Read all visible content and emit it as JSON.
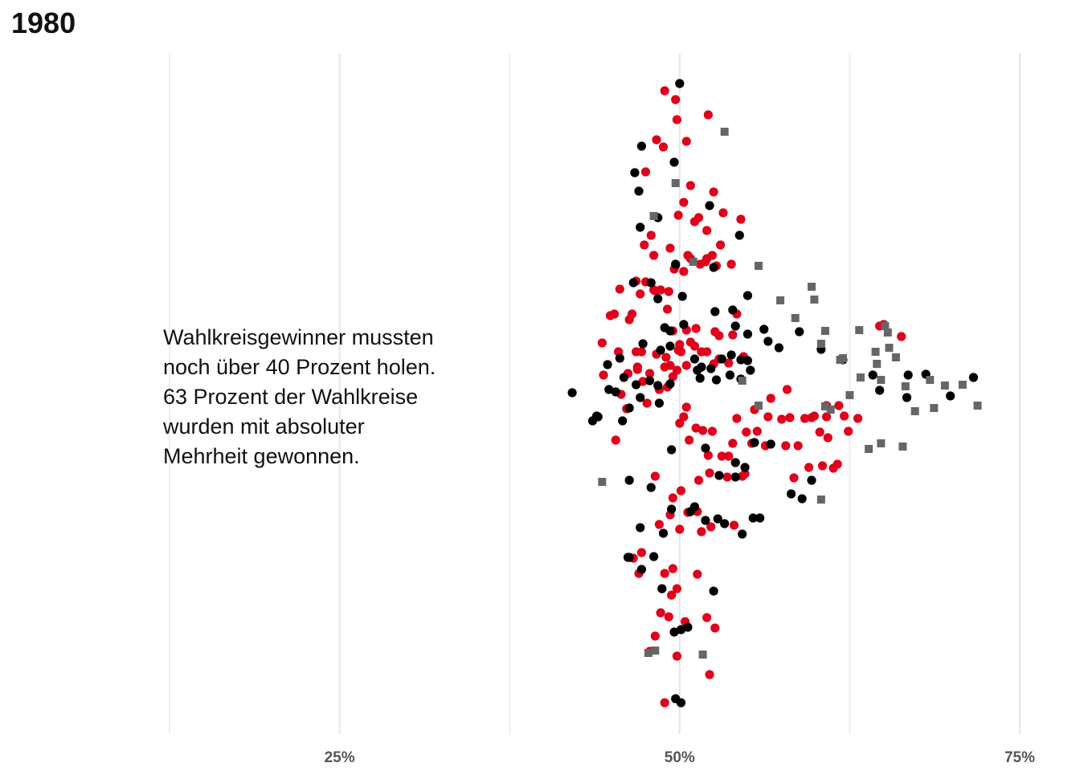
{
  "chart_data": {
    "type": "scatter",
    "subtype": "beeswarm",
    "title": "1980",
    "annotation": [
      "Wahlkreisgewinner mussten",
      "noch über 40 Prozent holen.",
      "63 Prozent der Wahlkreise",
      "wurden mit absoluter",
      "Mehrheit gewonnen."
    ],
    "x_axis": {
      "unit": "%",
      "xlim": [
        12.5,
        75
      ],
      "major_ticks": [
        25,
        50,
        75
      ],
      "tick_labels": [
        "25%",
        "50%",
        "75%"
      ],
      "minor_gridlines": [
        12.5,
        37.5,
        62.5
      ]
    },
    "grid": true,
    "colors": {
      "red": "#e0001b",
      "black": "#000000",
      "gray": "#666666"
    },
    "series": [
      {
        "color_key": "red",
        "shape": "circle",
        "x": [
          48.9,
          49.7,
          49.8,
          52.1,
          48.3,
          50.5,
          48.8,
          47.5,
          50.8,
          52.5,
          50.3,
          51.4,
          49.9,
          53.2,
          54.5,
          51.1,
          52.0,
          47.9,
          47.4,
          49.3,
          48.1,
          51.9,
          53.8,
          52.7,
          50.6,
          49.6,
          46.8,
          45.6,
          44.9,
          45.2,
          44.3,
          45.5,
          44.4,
          46.2,
          47.2,
          46.8,
          46.9,
          45.7,
          47.3,
          47.6,
          48.5,
          48.9,
          49.3,
          49.1,
          49.5,
          49.9,
          50.1,
          50.5,
          50.3,
          50.0,
          50.7,
          51.2,
          52.4,
          51.7,
          53.1,
          52.1,
          53.6,
          54.2,
          53.9,
          54.8,
          55.3,
          54.6,
          55.7,
          54.9,
          56.3,
          57.8,
          58.7,
          58.4,
          59.5,
          60.5,
          61.3,
          61.6,
          60.9,
          60.3,
          59.7,
          60.8,
          62.1,
          62.4,
          63.1,
          64.7,
          65.0,
          66.3,
          57.9,
          56.7,
          55.5,
          57.5,
          58.1,
          59.2,
          59.9,
          60.8,
          61.7,
          56.5,
          54.7,
          53.6,
          52.9,
          52.5,
          52.0,
          51.6,
          51.2,
          50.8,
          50.5,
          50.0,
          49.5,
          49.1,
          48.6,
          48.1,
          47.5,
          46.5,
          46.3,
          47.1,
          48.2,
          49.2,
          49.7,
          50.3,
          50.8,
          51.5,
          52.0,
          52.4,
          53.0,
          54.2,
          53.9,
          52.9,
          52.6,
          51.1,
          50.5,
          49.8,
          49.0,
          48.3,
          47.8,
          46.9,
          46.1,
          45.3,
          48.2,
          49.5,
          50.1,
          51.4,
          52.2,
          53.5,
          54.0,
          52.3,
          51.6,
          51.3,
          50.6,
          50.0,
          49.3,
          48.5,
          47.2,
          46.6,
          47.0,
          48.9,
          49.5,
          51.3,
          49.8,
          49.4,
          48.6,
          52.0,
          52.6,
          50.4,
          49.2,
          48.2,
          47.8,
          49.8,
          52.2,
          48.9
        ],
        "y": [
          113,
          124,
          149,
          143,
          174,
          176,
          183,
          214,
          231,
          239,
          252,
          271,
          268,
          265,
          273,
          276,
          287,
          293,
          305,
          309,
          318,
          326,
          329,
          331,
          318,
          335,
          350,
          360,
          393,
          391,
          427,
          438,
          467,
          465,
          438,
          438,
          457,
          491,
          475,
          502,
          485,
          457,
          455,
          482,
          469,
          436,
          438,
          507,
          519,
          527,
          548,
          533,
          537,
          536,
          568,
          567,
          568,
          521,
          552,
          590,
          552,
          593,
          537,
          538,
          555,
          555,
          555,
          595,
          582,
          580,
          583,
          578,
          545,
          538,
          520,
          519,
          518,
          537,
          521,
          406,
          404,
          419,
          485,
          496,
          510,
          522,
          520,
          521,
          518,
          505,
          505,
          519,
          444,
          452,
          447,
          453,
          438,
          438,
          409,
          426,
          411,
          429,
          412,
          385,
          361,
          361,
          351,
          391,
          398,
          366,
          362,
          363,
          331,
          338,
          322,
          329,
          322,
          318,
          305,
          391,
          417,
          418,
          413,
          431,
          455,
          461,
          445,
          441,
          465,
          460,
          509,
          548,
          593,
          620,
          611,
          598,
          589,
          594,
          654,
          656,
          662,
          637,
          638,
          659,
          641,
          653,
          688,
          695,
          714,
          714,
          708,
          715,
          733,
          741,
          763,
          769,
          782,
          774,
          768,
          792,
          811,
          817,
          840,
          875
        ]
      },
      {
        "color_key": "black",
        "shape": "circle",
        "x": [
          50.0,
          47.2,
          52.2,
          49.6,
          46.7,
          47.0,
          55.0,
          52.5,
          48.4,
          47.1,
          54.4,
          49.7,
          46.6,
          48.4,
          49.3,
          50.2,
          47.9,
          52.6,
          53.9,
          54.1,
          55.0,
          56.2,
          58.8,
          56.5,
          57.3,
          60.4,
          55.0,
          53.8,
          54.5,
          53.1,
          51.6,
          52.3,
          51.3,
          49.3,
          48.4,
          46.8,
          45.3,
          44.8,
          43.9,
          42.1,
          43.6,
          44.0,
          45.8,
          44.7,
          45.6,
          47.3,
          48.6,
          49.3,
          48.9,
          50.3,
          51.1,
          51.5,
          52.7,
          53.7,
          54.5,
          55.2,
          55.5,
          54.1,
          52.9,
          51.9,
          50.8,
          49.4,
          48.8,
          47.1,
          46.3,
          46.2,
          47.2,
          48.1,
          48.7,
          52.5,
          50.1,
          50.6,
          49.6,
          54.8,
          54.1,
          59.0,
          58.2,
          62.0,
          64.2,
          66.8,
          68.1,
          71.6,
          69.9,
          64.7,
          66.7,
          49.7,
          50.1,
          49.4,
          48.5,
          47.1,
          46.3,
          45.9,
          47.8,
          46.3,
          47.9,
          56.7,
          59.7,
          51.1,
          51.9,
          52.8,
          53.3,
          54.6,
          55.4,
          55.9
        ],
        "y": [
          104,
          182,
          256,
          202,
          215,
          238,
          368,
          333,
          271,
          283,
          293,
          329,
          352,
          372,
          412,
          369,
          352,
          388,
          386,
          406,
          416,
          410,
          413,
          425,
          433,
          435,
          449,
          442,
          448,
          447,
          457,
          459,
          461,
          478,
          480,
          479,
          488,
          485,
          518,
          489,
          524,
          519,
          524,
          454,
          446,
          428,
          436,
          431,
          408,
          404,
          447,
          471,
          473,
          467,
          472,
          461,
          551,
          594,
          592,
          558,
          637,
          634,
          664,
          657,
          694,
          694,
          709,
          693,
          733,
          736,
          784,
          781,
          787,
          582,
          576,
          621,
          615,
          448,
          467,
          467,
          466,
          470,
          493,
          486,
          495,
          870,
          875,
          560,
          502,
          495,
          508,
          470,
          474,
          598,
          607,
          553,
          598,
          631,
          648,
          646,
          652,
          665,
          645,
          645
        ]
      },
      {
        "color_key": "gray",
        "shape": "square",
        "x": [
          53.3,
          49.7,
          48.1,
          51.0,
          55.8,
          57.4,
          59.7,
          59.9,
          58.5,
          60.7,
          60.4,
          61.8,
          62.0,
          63.2,
          64.4,
          65.1,
          65.3,
          64.5,
          64.8,
          65.4,
          65.9,
          68.4,
          69.5,
          66.6,
          67.3,
          68.7,
          70.8,
          71.9,
          66.4,
          64.8,
          63.9,
          63.3,
          62.5,
          61.1,
          60.7,
          55.8,
          54.6,
          44.3,
          48.2,
          47.7,
          51.7,
          60.4
        ],
        "y": [
          164,
          228,
          269,
          326,
          331,
          374,
          357,
          373,
          396,
          412,
          428,
          448,
          446,
          411,
          438,
          406,
          414,
          453,
          473,
          433,
          445,
          473,
          480,
          481,
          512,
          508,
          479,
          505,
          556,
          552,
          559,
          470,
          492,
          510,
          506,
          505,
          474,
          600,
          810,
          813,
          815,
          622
        ]
      }
    ]
  }
}
